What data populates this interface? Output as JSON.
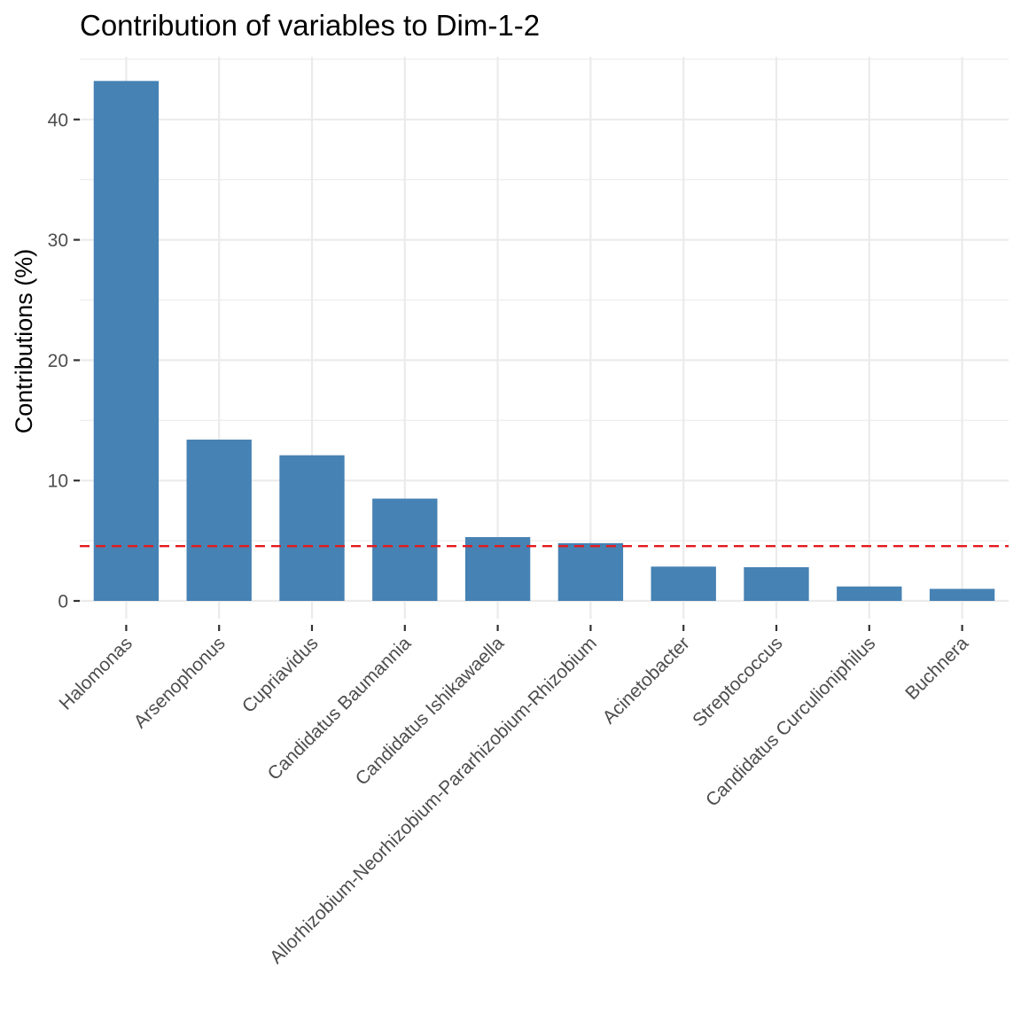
{
  "chart_data": {
    "type": "bar",
    "title": "Contribution of variables to Dim-1-2",
    "xlabel": "",
    "ylabel": "Contributions (%)",
    "categories": [
      "Halomonas",
      "Arsenophonus",
      "Cupriavidus",
      "Candidatus Baumannia",
      "Candidatus Ishikawaella",
      "Allorhizobium-Neorhizobium-Pararhizobium-Rhizobium",
      "Acinetobacter",
      "Streptococcus",
      "Candidatus Curculioniphilus",
      "Buchnera"
    ],
    "values": [
      43.2,
      13.4,
      12.1,
      8.5,
      5.3,
      4.8,
      2.85,
      2.8,
      1.2,
      1.0
    ],
    "reference_line": {
      "value": 4.55,
      "color": "#e41a1c",
      "style": "dashed"
    },
    "ylim": [
      -1.3,
      45.3
    ],
    "yticks": [
      0,
      10,
      20,
      30,
      40
    ],
    "ytick_labels": [
      "0",
      "10",
      "20",
      "30",
      "40"
    ],
    "bar_color": "#4682b4",
    "grid": true,
    "x_label_rotation": 45
  }
}
